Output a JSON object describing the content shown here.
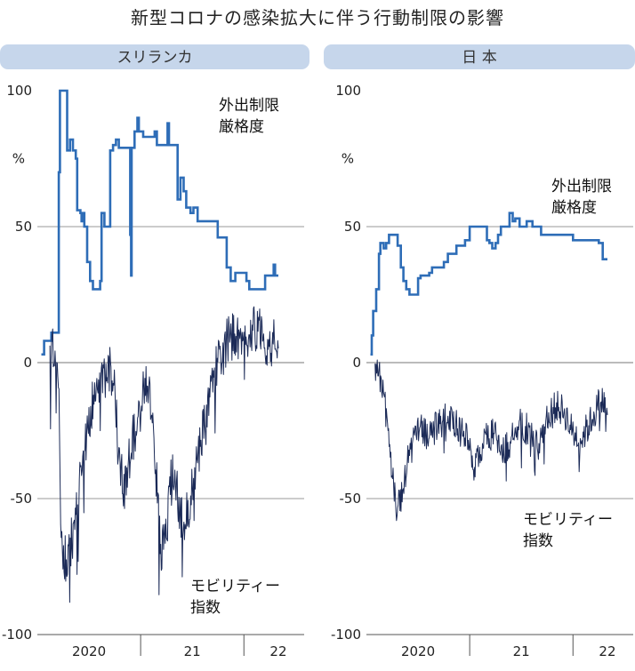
{
  "title": "新型コロナの感染拡大に伴う行動制限の影響",
  "colors": {
    "header_bg": "#c6d6eb",
    "stringency": "#2e6db7",
    "mobility": "#1b2a57",
    "grid": "#9a9a9a"
  },
  "chart_data": [
    {
      "type": "line",
      "title": "スリランカ",
      "ylim": [
        -100,
        100
      ],
      "yticks": [
        100,
        50,
        0,
        -50,
        -100
      ],
      "y_unit": "%",
      "x_range": [
        "2020-01",
        "2022-08"
      ],
      "xticks": [
        {
          "label": "2020",
          "at": "2020-07"
        },
        {
          "label": "21",
          "at": "2021-07"
        },
        {
          "label": "22",
          "at": "2022-05"
        }
      ],
      "year_separators": [
        "2021-01",
        "2022-01"
      ],
      "series": [
        {
          "name": "外出制限\n厳格度",
          "color": "#2e6db7",
          "step": true,
          "points": [
            [
              "2020-01-15",
              3
            ],
            [
              "2020-01-25",
              8
            ],
            [
              "2020-02-20",
              11
            ],
            [
              "2020-03-10",
              11
            ],
            [
              "2020-03-16",
              70
            ],
            [
              "2020-03-20",
              100
            ],
            [
              "2020-04-10",
              100
            ],
            [
              "2020-04-15",
              78
            ],
            [
              "2020-04-25",
              82
            ],
            [
              "2020-05-05",
              78
            ],
            [
              "2020-05-15",
              75
            ],
            [
              "2020-05-20",
              56
            ],
            [
              "2020-06-01",
              55
            ],
            [
              "2020-06-05",
              52
            ],
            [
              "2020-06-10",
              55
            ],
            [
              "2020-06-15",
              50
            ],
            [
              "2020-06-25",
              37
            ],
            [
              "2020-07-05",
              30
            ],
            [
              "2020-07-15",
              27
            ],
            [
              "2020-08-10",
              30
            ],
            [
              "2020-08-15",
              55
            ],
            [
              "2020-08-25",
              50
            ],
            [
              "2020-09-10",
              50
            ],
            [
              "2020-09-15",
              78
            ],
            [
              "2020-09-25",
              80
            ],
            [
              "2020-10-05",
              82
            ],
            [
              "2020-10-15",
              79
            ],
            [
              "2020-11-20",
              79
            ],
            [
              "2020-11-25",
              47
            ],
            [
              "2020-11-28",
              32
            ],
            [
              "2020-11-30",
              79
            ],
            [
              "2020-12-10",
              85
            ],
            [
              "2020-12-20",
              90
            ],
            [
              "2020-12-25",
              85
            ],
            [
              "2021-01-10",
              83
            ],
            [
              "2021-02-10",
              83
            ],
            [
              "2021-02-20",
              85
            ],
            [
              "2021-02-28",
              80
            ],
            [
              "2021-04-01",
              80
            ],
            [
              "2021-04-05",
              88
            ],
            [
              "2021-04-10",
              80
            ],
            [
              "2021-05-05",
              80
            ],
            [
              "2021-05-10",
              60
            ],
            [
              "2021-05-20",
              68
            ],
            [
              "2021-06-01",
              63
            ],
            [
              "2021-06-10",
              57
            ],
            [
              "2021-06-25",
              55
            ],
            [
              "2021-07-05",
              57
            ],
            [
              "2021-07-20",
              52
            ],
            [
              "2021-09-20",
              52
            ],
            [
              "2021-09-30",
              46
            ],
            [
              "2021-10-25",
              46
            ],
            [
              "2021-11-01",
              35
            ],
            [
              "2021-11-15",
              30
            ],
            [
              "2021-12-01",
              33
            ],
            [
              "2022-01-10",
              30
            ],
            [
              "2022-01-20",
              27
            ],
            [
              "2022-03-01",
              27
            ],
            [
              "2022-03-15",
              32
            ],
            [
              "2022-04-01",
              32
            ],
            [
              "2022-04-15",
              36
            ],
            [
              "2022-04-20",
              32
            ],
            [
              "2022-05-01",
              32
            ]
          ]
        },
        {
          "name": "モビリティー\n指数",
          "color": "#1b2a57",
          "noisy": true,
          "points": [
            [
              "2020-02-15",
              2
            ],
            [
              "2020-03-01",
              5
            ],
            [
              "2020-03-15",
              -10
            ],
            [
              "2020-03-25",
              -65
            ],
            [
              "2020-04-15",
              -75
            ],
            [
              "2020-05-01",
              -65
            ],
            [
              "2020-05-15",
              -58
            ],
            [
              "2020-06-01",
              -42
            ],
            [
              "2020-06-15",
              -30
            ],
            [
              "2020-07-01",
              -22
            ],
            [
              "2020-07-15",
              -14
            ],
            [
              "2020-08-01",
              -10
            ],
            [
              "2020-08-15",
              -5
            ],
            [
              "2020-09-01",
              -6
            ],
            [
              "2020-09-15",
              -3
            ],
            [
              "2020-10-01",
              -8
            ],
            [
              "2020-10-15",
              -30
            ],
            [
              "2020-11-01",
              -50
            ],
            [
              "2020-11-15",
              -40
            ],
            [
              "2020-12-01",
              -30
            ],
            [
              "2020-12-15",
              -22
            ],
            [
              "2021-01-01",
              -16
            ],
            [
              "2021-01-15",
              -8
            ],
            [
              "2021-02-01",
              -12
            ],
            [
              "2021-02-15",
              -25
            ],
            [
              "2021-03-01",
              -50
            ],
            [
              "2021-03-15",
              -70
            ],
            [
              "2021-04-01",
              -62
            ],
            [
              "2021-04-15",
              -45
            ],
            [
              "2021-05-01",
              -40
            ],
            [
              "2021-05-15",
              -52
            ],
            [
              "2021-06-01",
              -62
            ],
            [
              "2021-06-15",
              -55
            ],
            [
              "2021-07-01",
              -45
            ],
            [
              "2021-07-15",
              -38
            ],
            [
              "2021-08-01",
              -28
            ],
            [
              "2021-08-15",
              -20
            ],
            [
              "2021-09-01",
              -12
            ],
            [
              "2021-09-15",
              -5
            ],
            [
              "2021-10-01",
              0
            ],
            [
              "2021-10-15",
              3
            ],
            [
              "2021-11-01",
              7
            ],
            [
              "2021-11-15",
              9
            ],
            [
              "2021-12-01",
              11
            ],
            [
              "2021-12-15",
              6
            ],
            [
              "2022-01-01",
              5
            ],
            [
              "2022-01-15",
              10
            ],
            [
              "2022-02-01",
              14
            ],
            [
              "2022-02-15",
              12
            ],
            [
              "2022-03-01",
              12
            ],
            [
              "2022-03-15",
              9
            ],
            [
              "2022-04-01",
              4
            ],
            [
              "2022-04-15",
              10
            ],
            [
              "2022-05-01",
              8
            ]
          ]
        }
      ]
    },
    {
      "type": "line",
      "title": "日 本",
      "ylim": [
        -100,
        100
      ],
      "yticks": [
        100,
        50,
        0,
        -50,
        -100
      ],
      "y_unit": "%",
      "x_range": [
        "2020-01",
        "2022-08"
      ],
      "xticks": [
        {
          "label": "2020",
          "at": "2020-07"
        },
        {
          "label": "21",
          "at": "2021-07"
        },
        {
          "label": "22",
          "at": "2022-05"
        }
      ],
      "year_separators": [
        "2021-01",
        "2022-01"
      ],
      "series": [
        {
          "name": "外出制限\n厳格度",
          "color": "#2e6db7",
          "step": true,
          "points": [
            [
              "2020-01-15",
              3
            ],
            [
              "2020-01-20",
              10
            ],
            [
              "2020-01-25",
              19
            ],
            [
              "2020-02-05",
              27
            ],
            [
              "2020-02-15",
              40
            ],
            [
              "2020-02-20",
              44
            ],
            [
              "2020-03-01",
              42
            ],
            [
              "2020-03-10",
              44
            ],
            [
              "2020-03-20",
              47
            ],
            [
              "2020-04-01",
              47
            ],
            [
              "2020-04-10",
              47
            ],
            [
              "2020-04-20",
              43
            ],
            [
              "2020-05-01",
              35
            ],
            [
              "2020-05-10",
              30
            ],
            [
              "2020-05-20",
              27
            ],
            [
              "2020-06-01",
              25
            ],
            [
              "2020-06-10",
              25
            ],
            [
              "2020-07-01",
              31
            ],
            [
              "2020-07-10",
              32
            ],
            [
              "2020-08-10",
              33
            ],
            [
              "2020-08-20",
              35
            ],
            [
              "2020-09-20",
              35
            ],
            [
              "2020-10-01",
              37
            ],
            [
              "2020-10-15",
              40
            ],
            [
              "2020-11-15",
              43
            ],
            [
              "2020-12-15",
              45
            ],
            [
              "2021-01-01",
              50
            ],
            [
              "2021-02-20",
              50
            ],
            [
              "2021-03-01",
              45
            ],
            [
              "2021-03-10",
              44
            ],
            [
              "2021-03-20",
              42
            ],
            [
              "2021-04-01",
              44
            ],
            [
              "2021-04-10",
              47
            ],
            [
              "2021-04-20",
              50
            ],
            [
              "2021-05-01",
              50
            ],
            [
              "2021-05-20",
              55
            ],
            [
              "2021-06-01",
              52
            ],
            [
              "2021-06-10",
              53
            ],
            [
              "2021-06-25",
              50
            ],
            [
              "2021-07-20",
              52
            ],
            [
              "2021-08-10",
              50
            ],
            [
              "2021-09-10",
              47
            ],
            [
              "2021-10-01",
              47
            ],
            [
              "2021-11-01",
              47
            ],
            [
              "2022-01-01",
              45
            ],
            [
              "2022-04-01",
              44
            ],
            [
              "2022-04-15",
              38
            ],
            [
              "2022-05-01",
              38
            ]
          ]
        },
        {
          "name": "モビリティー\n指数",
          "color": "#1b2a57",
          "noisy": true,
          "points": [
            [
              "2020-02-01",
              -2
            ],
            [
              "2020-02-20",
              -5
            ],
            [
              "2020-03-01",
              -10
            ],
            [
              "2020-03-15",
              -20
            ],
            [
              "2020-04-01",
              -40
            ],
            [
              "2020-04-15",
              -55
            ],
            [
              "2020-05-01",
              -50
            ],
            [
              "2020-05-15",
              -42
            ],
            [
              "2020-06-01",
              -30
            ],
            [
              "2020-07-01",
              -24
            ],
            [
              "2020-08-01",
              -26
            ],
            [
              "2020-09-01",
              -24
            ],
            [
              "2020-10-01",
              -20
            ],
            [
              "2020-11-01",
              -22
            ],
            [
              "2020-12-01",
              -24
            ],
            [
              "2021-01-01",
              -30
            ],
            [
              "2021-01-15",
              -38
            ],
            [
              "2021-02-01",
              -34
            ],
            [
              "2021-03-01",
              -28
            ],
            [
              "2021-04-01",
              -26
            ],
            [
              "2021-05-01",
              -32
            ],
            [
              "2021-06-01",
              -28
            ],
            [
              "2021-07-01",
              -22
            ],
            [
              "2021-08-01",
              -26
            ],
            [
              "2021-09-01",
              -30
            ],
            [
              "2021-10-01",
              -20
            ],
            [
              "2021-11-01",
              -16
            ],
            [
              "2021-12-01",
              -18
            ],
            [
              "2022-01-01",
              -26
            ],
            [
              "2022-02-01",
              -28
            ],
            [
              "2022-03-01",
              -22
            ],
            [
              "2022-04-01",
              -15
            ],
            [
              "2022-05-01",
              -14
            ]
          ]
        }
      ]
    }
  ]
}
